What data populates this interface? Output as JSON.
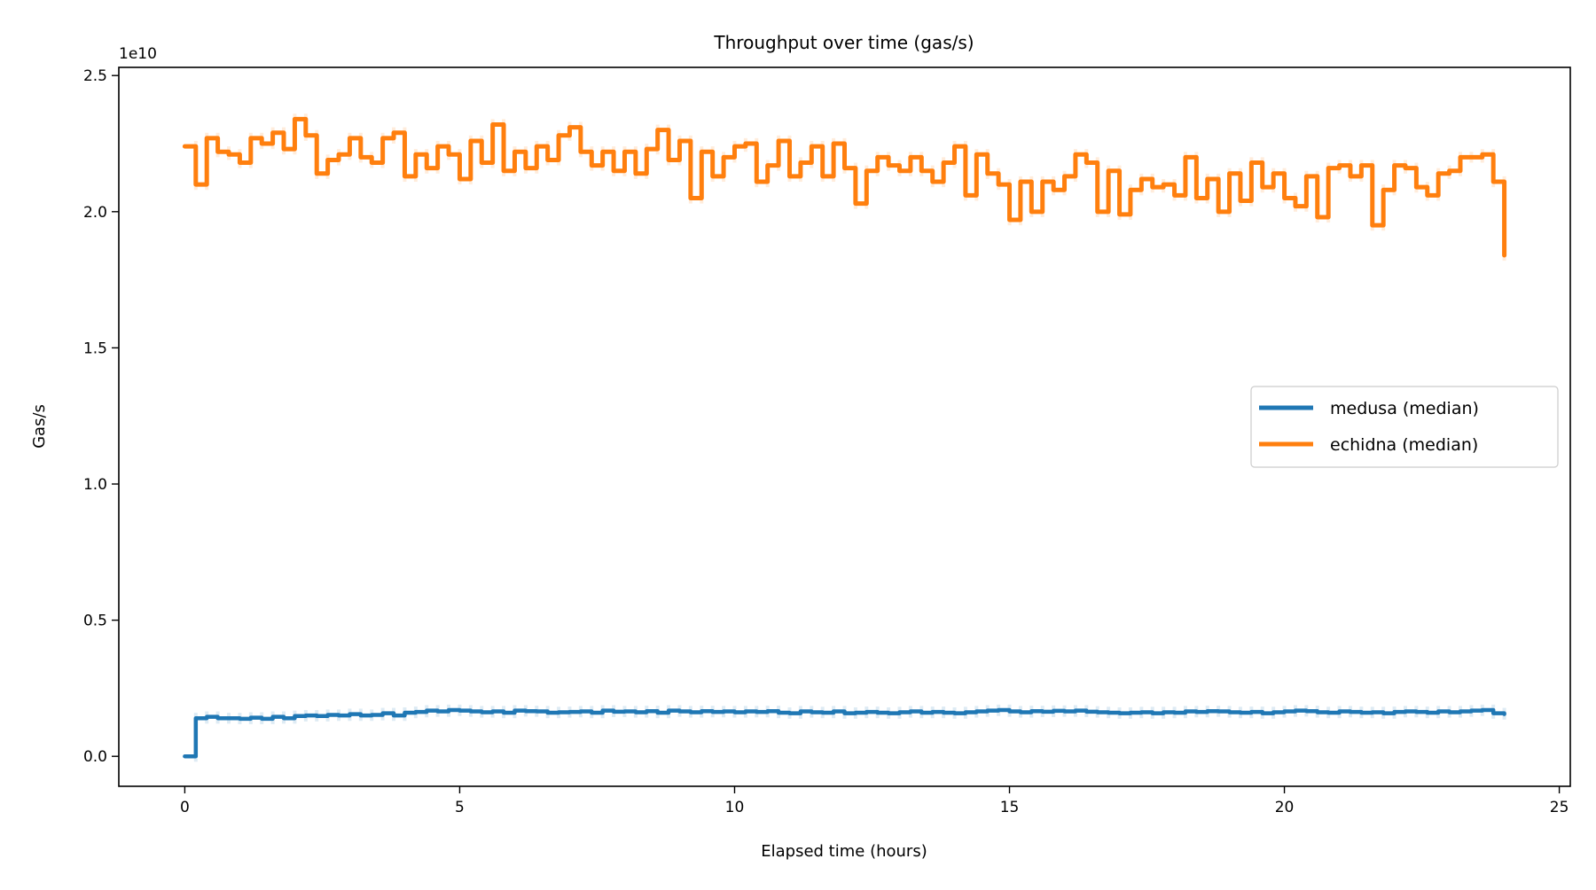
{
  "chart_data": {
    "type": "line",
    "title": "Throughput over time (gas/s)",
    "xlabel": "Elapsed time (hours)",
    "ylabel": "Gas/s",
    "y_offset_label": "1e10",
    "xlim": [
      -1.2,
      25.2
    ],
    "ylim": [
      -0.11,
      2.53
    ],
    "y_scale_factor": 10000000000.0,
    "x_ticks": [
      0,
      5,
      10,
      15,
      20,
      25
    ],
    "x_tick_labels": [
      "0",
      "5",
      "10",
      "15",
      "20",
      "25"
    ],
    "y_ticks": [
      0.0,
      0.5,
      1.0,
      1.5,
      2.0,
      2.5
    ],
    "y_tick_labels": [
      "0.0",
      "0.5",
      "1.0",
      "1.5",
      "2.0",
      "2.5"
    ],
    "grid": false,
    "legend_position": "center-right",
    "drawstyle": "steps-post",
    "x_step": 0.2,
    "x_start": 0,
    "series": [
      {
        "name": "medusa (median)",
        "color": "#1f77b4",
        "values": [
          0.0,
          0.14,
          0.145,
          0.14,
          0.14,
          0.138,
          0.142,
          0.138,
          0.145,
          0.14,
          0.148,
          0.15,
          0.148,
          0.152,
          0.15,
          0.155,
          0.15,
          0.152,
          0.158,
          0.15,
          0.16,
          0.163,
          0.168,
          0.165,
          0.17,
          0.168,
          0.165,
          0.162,
          0.165,
          0.16,
          0.168,
          0.166,
          0.165,
          0.16,
          0.162,
          0.163,
          0.165,
          0.16,
          0.168,
          0.164,
          0.165,
          0.162,
          0.166,
          0.16,
          0.168,
          0.165,
          0.162,
          0.166,
          0.163,
          0.165,
          0.162,
          0.165,
          0.163,
          0.166,
          0.16,
          0.158,
          0.165,
          0.162,
          0.16,
          0.165,
          0.158,
          0.16,
          0.163,
          0.16,
          0.158,
          0.162,
          0.165,
          0.16,
          0.163,
          0.16,
          0.158,
          0.162,
          0.165,
          0.168,
          0.17,
          0.165,
          0.162,
          0.166,
          0.164,
          0.167,
          0.165,
          0.168,
          0.164,
          0.162,
          0.16,
          0.158,
          0.16,
          0.162,
          0.158,
          0.162,
          0.16,
          0.165,
          0.163,
          0.166,
          0.165,
          0.162,
          0.16,
          0.163,
          0.158,
          0.162,
          0.165,
          0.168,
          0.166,
          0.162,
          0.16,
          0.165,
          0.163,
          0.16,
          0.162,
          0.158,
          0.163,
          0.165,
          0.163,
          0.16,
          0.165,
          0.162,
          0.165,
          0.168,
          0.17,
          0.158,
          0.155
        ]
      },
      {
        "name": "echidna (median)",
        "color": "#ff7f0e",
        "values": [
          2.24,
          2.1,
          2.27,
          2.22,
          2.21,
          2.18,
          2.27,
          2.25,
          2.29,
          2.23,
          2.34,
          2.28,
          2.14,
          2.19,
          2.21,
          2.27,
          2.2,
          2.18,
          2.27,
          2.29,
          2.13,
          2.21,
          2.16,
          2.24,
          2.21,
          2.12,
          2.26,
          2.18,
          2.32,
          2.15,
          2.22,
          2.16,
          2.24,
          2.19,
          2.28,
          2.31,
          2.22,
          2.17,
          2.22,
          2.15,
          2.22,
          2.14,
          2.23,
          2.3,
          2.19,
          2.26,
          2.05,
          2.22,
          2.13,
          2.2,
          2.24,
          2.25,
          2.11,
          2.17,
          2.26,
          2.13,
          2.18,
          2.24,
          2.13,
          2.25,
          2.16,
          2.03,
          2.15,
          2.2,
          2.17,
          2.15,
          2.2,
          2.15,
          2.11,
          2.18,
          2.24,
          2.06,
          2.21,
          2.14,
          2.1,
          1.97,
          2.11,
          2.0,
          2.11,
          2.08,
          2.13,
          2.21,
          2.18,
          2.0,
          2.15,
          1.99,
          2.08,
          2.12,
          2.09,
          2.1,
          2.06,
          2.2,
          2.05,
          2.12,
          2.0,
          2.14,
          2.04,
          2.18,
          2.09,
          2.14,
          2.05,
          2.02,
          2.13,
          1.98,
          2.16,
          2.17,
          2.13,
          2.17,
          1.95,
          2.08,
          2.17,
          2.16,
          2.09,
          2.06,
          2.14,
          2.15,
          2.2,
          2.2,
          2.21,
          2.11,
          1.84
        ]
      }
    ]
  }
}
